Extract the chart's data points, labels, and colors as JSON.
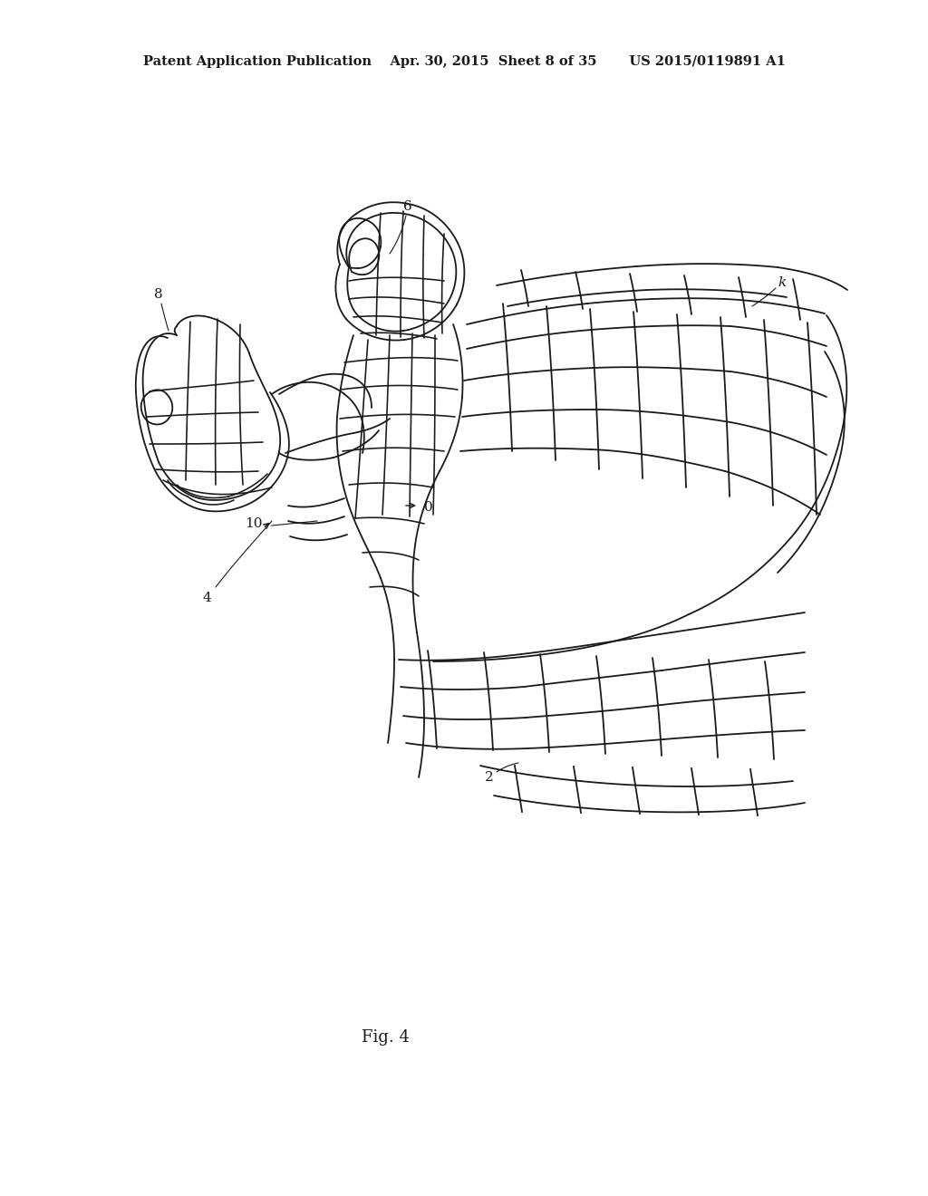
{
  "bg_color": "#ffffff",
  "line_color": "#1a1a1a",
  "line_width": 1.3,
  "header_text": "Patent Application Publication    Apr. 30, 2015  Sheet 8 of 35       US 2015/0119891 A1",
  "fig_label": "Fig. 4",
  "label_fontsize": 11,
  "header_fontsize": 10.5,
  "fig_label_fontsize": 13
}
